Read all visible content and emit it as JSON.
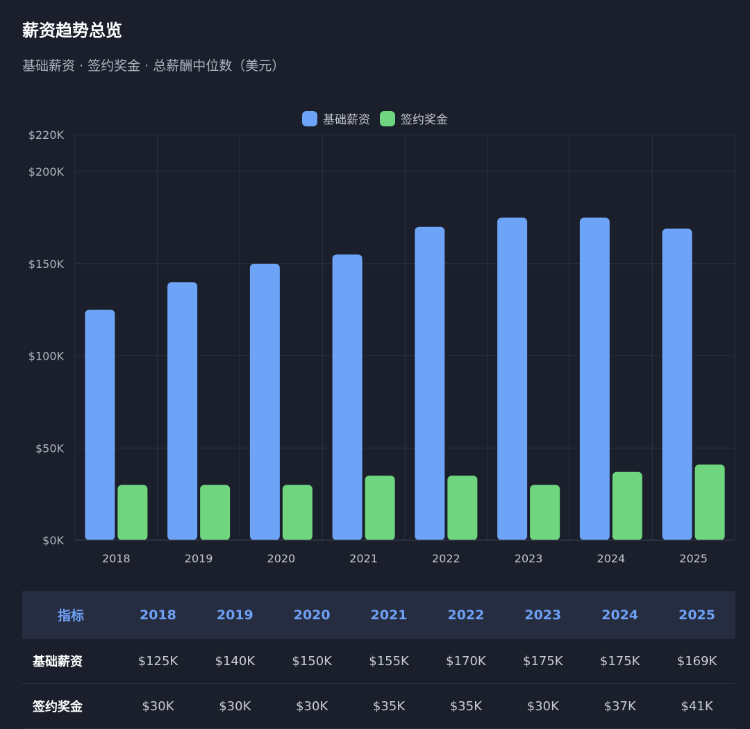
{
  "header": {
    "title": "薪资趋势总览",
    "subtitle": "基础薪资 · 签约奖金 · 总薪酬中位数（美元）"
  },
  "colors": {
    "base_salary": "#6ea4f7",
    "signing_bonus": "#6fd67f",
    "background": "#1b1f2b",
    "grid": "#2c3242",
    "table_header_bg": "#262d40",
    "table_header_text": "#6ea0f5"
  },
  "chart_data": {
    "type": "bar",
    "categories": [
      "2018",
      "2019",
      "2020",
      "2021",
      "2022",
      "2023",
      "2024",
      "2025"
    ],
    "series": [
      {
        "name": "基础薪资",
        "values": [
          125,
          140,
          150,
          155,
          170,
          175,
          175,
          169
        ]
      },
      {
        "name": "签约奖金",
        "values": [
          30,
          30,
          30,
          35,
          35,
          30,
          37,
          41
        ]
      }
    ],
    "unit": "K USD",
    "ylim": [
      0,
      220
    ],
    "yticks": [
      {
        "value": 0,
        "label": "$0K"
      },
      {
        "value": 50,
        "label": "$50K"
      },
      {
        "value": 100,
        "label": "$100K"
      },
      {
        "value": 150,
        "label": "$150K"
      },
      {
        "value": 200,
        "label": "$200K"
      },
      {
        "value": 220,
        "label": "$220K"
      }
    ],
    "grid": true,
    "legend_position": "top-center"
  },
  "table": {
    "headers": [
      "指标",
      "2018",
      "2019",
      "2020",
      "2021",
      "2022",
      "2023",
      "2024",
      "2025"
    ],
    "rows": [
      {
        "label": "基础薪资",
        "cells": [
          "$125K",
          "$140K",
          "$150K",
          "$155K",
          "$170K",
          "$175K",
          "$175K",
          "$169K"
        ]
      },
      {
        "label": "签约奖金",
        "cells": [
          "$30K",
          "$30K",
          "$30K",
          "$35K",
          "$35K",
          "$30K",
          "$37K",
          "$41K"
        ]
      }
    ]
  }
}
